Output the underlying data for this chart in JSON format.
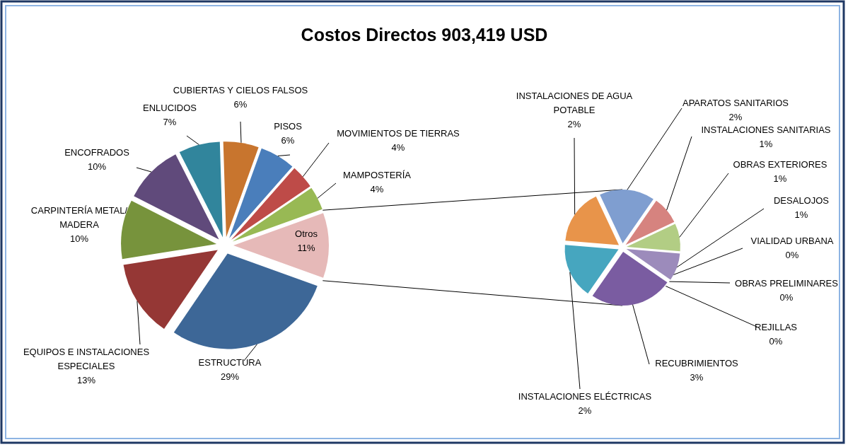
{
  "chart_data": [
    {
      "type": "pie",
      "title": "Costos Directos 903,419 USD",
      "categories": [
        "Otros",
        "ESTRUCTURA",
        "EQUIPOS E INSTALACIONES ESPECIALES",
        "CARPINTERÍA METAL/ MADERA",
        "ENCOFRADOS",
        "ENLUCIDOS",
        "CUBIERTAS Y CIELOS FALSOS",
        "PISOS",
        "MOVIMIENTOS  DE TIERRAS",
        "MAMPOSTERÍA"
      ],
      "values": [
        11,
        29,
        13,
        10,
        10,
        7,
        6,
        6,
        4,
        4
      ],
      "value_labels": [
        "11%",
        "29%",
        "13%",
        "10%",
        "10%",
        "7%",
        "6%",
        "6%",
        "4%",
        "4%"
      ],
      "colors": [
        "#e6b9b8",
        "#3d6797",
        "#953735",
        "#77933c",
        "#604a7b",
        "#31859c",
        "#c8752e",
        "#4a7ebb",
        "#be4b48",
        "#98b954"
      ]
    },
    {
      "type": "pie",
      "categories": [
        "APARATOS SANITARIOS",
        "INSTALACIONES SANITARIAS",
        "OBRAS EXTERIORES",
        "DESALOJOS",
        "VIALIDAD URBANA",
        "OBRAS PRELIMINARES",
        "REJILLAS",
        "RECUBRIMIENTOS",
        "INSTALACIONES ELÉCTRICAS",
        "INSTALACIONES DE AGUA POTABLE"
      ],
      "values": [
        2,
        1,
        1,
        1,
        0,
        0,
        0,
        3,
        2,
        2
      ],
      "value_labels": [
        "2%",
        "1%",
        "1%",
        "1%",
        "0%",
        "0%",
        "0%",
        "3%",
        "2%",
        "2%"
      ],
      "colors": [
        "#7f9ed0",
        "#d6837f",
        "#b2cd84",
        "#9c8bbb",
        "#6fb9d1",
        "#f5a86c",
        "#a5bde2",
        "#7a5ca1",
        "#46a6bf",
        "#e8944a"
      ]
    }
  ]
}
